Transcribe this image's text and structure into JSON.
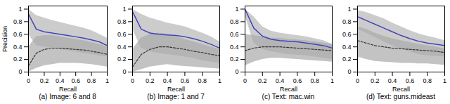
{
  "chart_data": [
    {
      "type": "line",
      "caption": "(a) Image: 6 and 8",
      "xlabel": "Recall",
      "ylabel": "Precision",
      "x": [
        0,
        0.1,
        0.2,
        0.3,
        0.4,
        0.5,
        0.6,
        0.7,
        0.8,
        0.9,
        1
      ],
      "xlim": [
        0,
        1
      ],
      "xticks": [
        0,
        0.2,
        0.4,
        0.6,
        0.8,
        1
      ],
      "ylim": [
        0,
        1.05
      ],
      "yticks": [
        0,
        0.2,
        0.4,
        0.6,
        0.8,
        1
      ],
      "series": [
        {
          "color": "#4444bb",
          "line_style": "solid",
          "values": [
            0.92,
            0.68,
            0.64,
            0.62,
            0.6,
            0.58,
            0.56,
            0.54,
            0.51,
            0.48,
            0.42
          ],
          "band": {
            "color": "#cccccc",
            "upper": [
              1.0,
              0.9,
              0.86,
              0.82,
              0.79,
              0.76,
              0.73,
              0.7,
              0.66,
              0.6,
              0.54
            ],
            "lower": [
              0.6,
              0.42,
              0.4,
              0.38,
              0.36,
              0.34,
              0.32,
              0.3,
              0.28,
              0.26,
              0.24
            ]
          }
        },
        {
          "color": "#333333",
          "line_style": "dashed",
          "values": [
            0.1,
            0.3,
            0.36,
            0.38,
            0.38,
            0.37,
            0.36,
            0.35,
            0.33,
            0.31,
            0.28
          ],
          "band": {
            "color": "#aaaaaa",
            "upper": [
              0.4,
              0.56,
              0.58,
              0.58,
              0.56,
              0.54,
              0.52,
              0.5,
              0.47,
              0.44,
              0.4
            ],
            "lower": [
              0.0,
              0.06,
              0.1,
              0.12,
              0.14,
              0.14,
              0.14,
              0.13,
              0.12,
              0.1,
              0.08
            ]
          }
        }
      ]
    },
    {
      "type": "line",
      "caption": "(b) Image: 1 and 7",
      "xlabel": "Recall",
      "x": [
        0,
        0.1,
        0.2,
        0.3,
        0.4,
        0.5,
        0.6,
        0.7,
        0.8,
        0.9,
        1
      ],
      "xlim": [
        0,
        1
      ],
      "xticks": [
        0,
        0.2,
        0.4,
        0.6,
        0.8,
        1
      ],
      "ylim": [
        0,
        1.05
      ],
      "yticks": [
        0,
        0.2,
        0.4,
        0.6,
        0.8,
        1
      ],
      "series": [
        {
          "color": "#4444bb",
          "line_style": "solid",
          "values": [
            0.96,
            0.68,
            0.62,
            0.6,
            0.59,
            0.58,
            0.56,
            0.53,
            0.49,
            0.44,
            0.38
          ],
          "band": {
            "color": "#cccccc",
            "upper": [
              1.0,
              0.92,
              0.86,
              0.82,
              0.78,
              0.75,
              0.72,
              0.67,
              0.62,
              0.56,
              0.48
            ],
            "lower": [
              0.68,
              0.38,
              0.32,
              0.3,
              0.28,
              0.26,
              0.24,
              0.22,
              0.18,
              0.16,
              0.14
            ]
          }
        },
        {
          "color": "#333333",
          "line_style": "dashed",
          "values": [
            0.08,
            0.28,
            0.36,
            0.4,
            0.4,
            0.38,
            0.36,
            0.33,
            0.31,
            0.28,
            0.26
          ],
          "band": {
            "color": "#aaaaaa",
            "upper": [
              0.36,
              0.54,
              0.6,
              0.62,
              0.6,
              0.56,
              0.52,
              0.48,
              0.44,
              0.4,
              0.36
            ],
            "lower": [
              0.0,
              0.04,
              0.08,
              0.1,
              0.12,
              0.1,
              0.09,
              0.08,
              0.07,
              0.06,
              0.05
            ]
          }
        }
      ]
    },
    {
      "type": "line",
      "caption": "(c) Text: mac.win",
      "xlabel": "Recall",
      "x": [
        0,
        0.1,
        0.2,
        0.3,
        0.4,
        0.5,
        0.6,
        0.7,
        0.8,
        0.9,
        1
      ],
      "xlim": [
        0,
        1
      ],
      "xticks": [
        0,
        0.2,
        0.4,
        0.6,
        0.8,
        1
      ],
      "ylim": [
        0,
        1.05
      ],
      "yticks": [
        0,
        0.2,
        0.4,
        0.6,
        0.8,
        1
      ],
      "series": [
        {
          "color": "#4444bb",
          "line_style": "solid",
          "values": [
            1.0,
            0.7,
            0.57,
            0.52,
            0.5,
            0.49,
            0.48,
            0.46,
            0.44,
            0.42,
            0.38
          ],
          "band": {
            "color": "#cccccc",
            "upper": [
              1.0,
              0.88,
              0.72,
              0.65,
              0.62,
              0.6,
              0.58,
              0.56,
              0.53,
              0.5,
              0.44
            ],
            "lower": [
              0.9,
              0.46,
              0.36,
              0.32,
              0.3,
              0.28,
              0.27,
              0.26,
              0.24,
              0.22,
              0.2
            ]
          }
        },
        {
          "color": "#333333",
          "line_style": "dashed",
          "values": [
            0.34,
            0.38,
            0.4,
            0.4,
            0.4,
            0.39,
            0.38,
            0.37,
            0.36,
            0.35,
            0.34
          ],
          "band": {
            "color": "#aaaaaa",
            "upper": [
              0.6,
              0.58,
              0.56,
              0.54,
              0.54,
              0.52,
              0.51,
              0.5,
              0.48,
              0.46,
              0.44
            ],
            "lower": [
              0.1,
              0.16,
              0.2,
              0.22,
              0.22,
              0.21,
              0.2,
              0.19,
              0.18,
              0.17,
              0.16
            ]
          }
        }
      ]
    },
    {
      "type": "line",
      "caption": "(d) Text: guns.mideast",
      "xlabel": "Recall",
      "x": [
        0,
        0.1,
        0.2,
        0.3,
        0.4,
        0.5,
        0.6,
        0.7,
        0.8,
        0.9,
        1
      ],
      "xlim": [
        0,
        1
      ],
      "xticks": [
        0,
        0.2,
        0.4,
        0.6,
        0.8,
        1
      ],
      "ylim": [
        0,
        1.05
      ],
      "yticks": [
        0,
        0.2,
        0.4,
        0.6,
        0.8,
        1
      ],
      "series": [
        {
          "color": "#4444bb",
          "line_style": "solid",
          "values": [
            0.88,
            0.82,
            0.76,
            0.7,
            0.64,
            0.58,
            0.53,
            0.49,
            0.46,
            0.44,
            0.42
          ],
          "band": {
            "color": "#cccccc",
            "upper": [
              0.98,
              0.95,
              0.9,
              0.85,
              0.78,
              0.72,
              0.66,
              0.61,
              0.57,
              0.54,
              0.5
            ],
            "lower": [
              0.68,
              0.62,
              0.55,
              0.48,
              0.42,
              0.36,
              0.32,
              0.28,
              0.26,
              0.25,
              0.24
            ]
          }
        },
        {
          "color": "#333333",
          "line_style": "dashed",
          "values": [
            0.5,
            0.46,
            0.42,
            0.4,
            0.38,
            0.37,
            0.36,
            0.35,
            0.34,
            0.33,
            0.31
          ],
          "band": {
            "color": "#aaaaaa",
            "upper": [
              0.72,
              0.68,
              0.62,
              0.57,
              0.53,
              0.5,
              0.47,
              0.44,
              0.42,
              0.4,
              0.37
            ],
            "lower": [
              0.24,
              0.2,
              0.17,
              0.16,
              0.15,
              0.14,
              0.14,
              0.13,
              0.13,
              0.12,
              0.11
            ]
          }
        }
      ]
    }
  ]
}
